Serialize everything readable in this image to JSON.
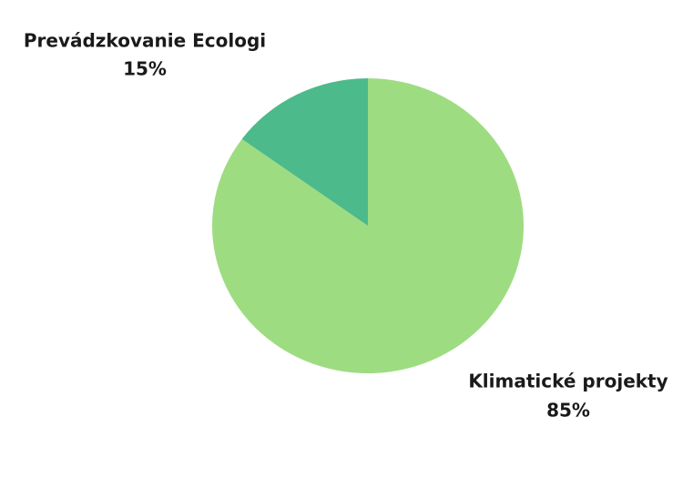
{
  "chart_data": {
    "type": "pie",
    "categories": [
      "Klimatické projekty",
      "Prevádzkovanie Ecologi"
    ],
    "values": [
      85,
      15
    ],
    "value_labels": [
      "85%",
      "15%"
    ],
    "colors": [
      "#9edc82",
      "#4cba8a"
    ]
  }
}
